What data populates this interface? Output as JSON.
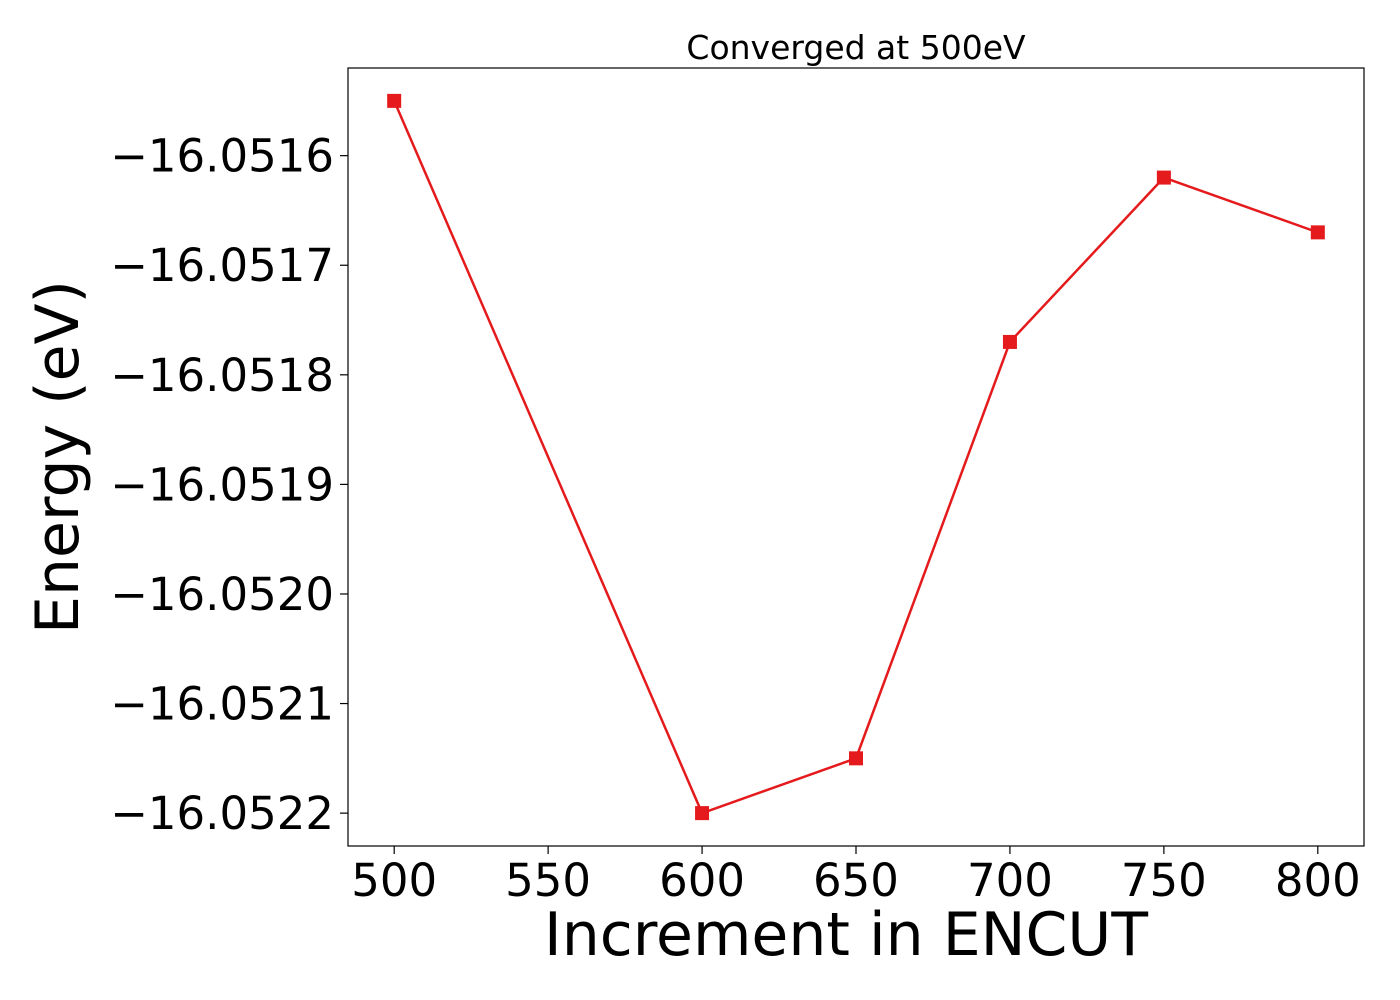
{
  "chart_data": {
    "type": "line",
    "title": "Converged at 500eV",
    "xlabel": "Increment in ENCUT",
    "ylabel": "Energy (eV)",
    "x": [
      500,
      600,
      650,
      700,
      750,
      800
    ],
    "series": [
      {
        "values": [
          -16.05155,
          -16.0522,
          -16.05215,
          -16.05177,
          -16.05162,
          -16.05167
        ],
        "color": "#e41a1c",
        "marker": "square"
      }
    ],
    "xlim": [
      485,
      815
    ],
    "ylim": [
      -16.05223,
      -16.05152
    ],
    "xticks": [
      500,
      550,
      600,
      650,
      700,
      750,
      800
    ],
    "xtick_labels": [
      "500",
      "550",
      "600",
      "650",
      "700",
      "750",
      "800"
    ],
    "yticks": [
      -16.0516,
      -16.0517,
      -16.0518,
      -16.0519,
      -16.052,
      -16.0521,
      -16.0522
    ],
    "ytick_labels": [
      "−16.0516",
      "−16.0517",
      "−16.0518",
      "−16.0519",
      "−16.0520",
      "−16.0521",
      "−16.0522"
    ],
    "grid": false,
    "legend": false
  }
}
